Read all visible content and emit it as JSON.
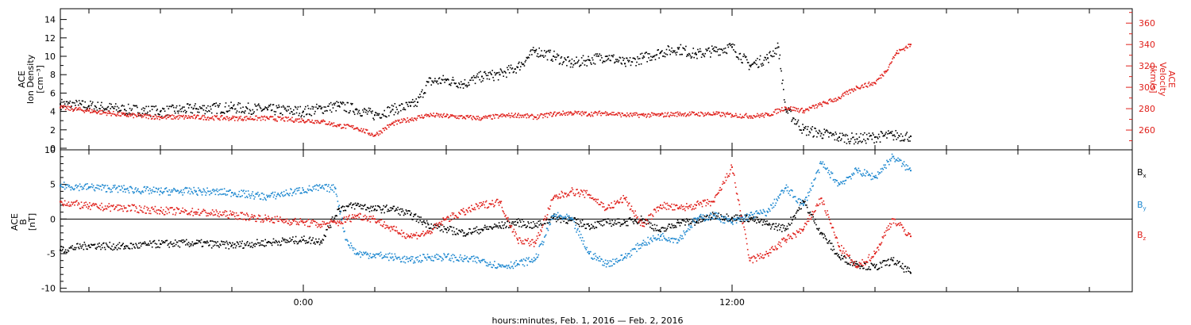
{
  "chart_data": [
    {
      "type": "scatter",
      "panel": "ion-density-velocity",
      "ylabel_lines": [
        "ACE",
        "Ion Density",
        "[cm⁻³]"
      ],
      "y2label_lines": [
        "ACE",
        "Velocity",
        "[km/s]"
      ],
      "ylim": [
        0,
        15
      ],
      "y2lim": [
        243,
        372
      ],
      "yticks": [
        0,
        2,
        4,
        6,
        8,
        10,
        12,
        14
      ],
      "y2ticks": [
        260,
        280,
        300,
        320,
        340,
        360
      ],
      "y2_color": "#e0201b",
      "xlim": [
        -6.8,
        23.2
      ],
      "series": [
        {
          "key": "density",
          "color": "#000000",
          "axis": "left",
          "x": [
            -6.8,
            -6,
            -5,
            -4,
            -3,
            -2,
            -1,
            0,
            0.5,
            1,
            1.5,
            2,
            2.5,
            3,
            3.2,
            3.5,
            4,
            4.5,
            5,
            5.5,
            6,
            6.5,
            7,
            7.5,
            8,
            8.5,
            9,
            9.5,
            10,
            10.5,
            11,
            11.5,
            12,
            12.5,
            13,
            13.3,
            13.5,
            14,
            14.5,
            15,
            15.5,
            16,
            16.5,
            17
          ],
          "y": [
            4.8,
            4.6,
            4.2,
            4.0,
            4.3,
            4.4,
            4.2,
            4.0,
            4.3,
            4.6,
            4.2,
            3.6,
            4.2,
            4.6,
            5.0,
            7.2,
            7.4,
            7.0,
            7.8,
            8.0,
            8.8,
            10.6,
            10.0,
            9.2,
            9.6,
            10.0,
            9.2,
            9.8,
            10.4,
            10.8,
            10.2,
            10.6,
            11.0,
            9.0,
            9.8,
            11.0,
            4.2,
            2.0,
            1.6,
            1.2,
            1.0,
            1.2,
            1.4,
            1.3
          ]
        },
        {
          "key": "velocity",
          "color": "#e0201b",
          "axis": "right",
          "x": [
            -6.8,
            -6,
            -5,
            -4,
            -3,
            -2,
            -1,
            0,
            0.5,
            1,
            1.5,
            2,
            2.5,
            3,
            3.5,
            4,
            4.5,
            5,
            5.5,
            6,
            6.5,
            7,
            7.5,
            8,
            8.5,
            9,
            9.5,
            10,
            10.5,
            11,
            11.5,
            12,
            12.5,
            13,
            13.5,
            14,
            14.5,
            15,
            15.5,
            16,
            16.3,
            16.6,
            17
          ],
          "y": [
            281,
            278,
            274,
            272,
            272,
            271,
            271,
            269,
            268,
            264,
            262,
            255,
            266,
            270,
            274,
            273,
            272,
            271,
            273,
            274,
            272,
            275,
            276,
            275,
            276,
            274,
            274,
            274,
            275,
            275,
            275,
            274,
            273,
            274,
            281,
            278,
            284,
            290,
            300,
            304,
            315,
            332,
            340
          ]
        }
      ]
    },
    {
      "type": "scatter",
      "panel": "magnetic-field",
      "ylabel_lines": [
        "ACE",
        "B",
        "[nT]"
      ],
      "ylim": [
        -10.5,
        10
      ],
      "yticks": [
        -10,
        -5,
        0,
        5,
        10
      ],
      "xlim": [
        -6.8,
        23.2
      ],
      "xticks": [
        {
          "x": 0,
          "label": "0:00"
        },
        {
          "x": 12,
          "label": "12:00"
        }
      ],
      "xlabel": "hours:minutes, Feb.  1, 2016 — Feb.  2, 2016",
      "series": [
        {
          "name": "Bx",
          "color": "#000000",
          "x": [
            -6.8,
            -6,
            -5,
            -4,
            -3,
            -2,
            -1,
            0,
            0.5,
            1,
            1.5,
            2,
            2.5,
            3,
            3.5,
            4,
            4.5,
            5,
            5.5,
            6,
            6.5,
            7,
            7.5,
            8,
            8.5,
            9,
            9.5,
            10,
            10.5,
            11,
            11.5,
            12,
            12.5,
            13,
            13.5,
            14,
            14.5,
            15,
            15.5,
            16,
            16.5,
            17
          ],
          "y": [
            -4.5,
            -3.8,
            -4.0,
            -3.6,
            -3.5,
            -3.8,
            -3.4,
            -3.0,
            -3.2,
            1.5,
            2.0,
            1.4,
            1.5,
            0.6,
            -0.8,
            -1.5,
            -2.0,
            -1.5,
            -1.0,
            -0.5,
            -1.0,
            0.2,
            -0.2,
            -1.0,
            -0.5,
            -0.5,
            0.0,
            -1.8,
            -0.5,
            -0.4,
            0.5,
            0.2,
            0.1,
            -0.8,
            -1.4,
            2.5,
            -2.0,
            -5.5,
            -6.5,
            -7.0,
            -6.0,
            -7.8
          ]
        },
        {
          "name": "By",
          "color": "#1e88d0",
          "x": [
            -6.8,
            -6,
            -5,
            -4,
            -3,
            -2,
            -1,
            0,
            0.5,
            0.9,
            1.2,
            1.5,
            2,
            2.5,
            3,
            3.5,
            4,
            4.5,
            5,
            5.5,
            6,
            6.5,
            7,
            7.5,
            8,
            8.5,
            9,
            9.5,
            10,
            10.5,
            11,
            11.5,
            12,
            12.5,
            13,
            13.5,
            14,
            14.5,
            15,
            15.5,
            16,
            16.5,
            17
          ],
          "y": [
            4.8,
            4.6,
            4.3,
            4.0,
            4.0,
            3.8,
            3.2,
            4.2,
            4.5,
            4.4,
            -3.0,
            -5.0,
            -5.2,
            -5.5,
            -6.0,
            -5.5,
            -5.5,
            -5.8,
            -6.0,
            -6.8,
            -6.5,
            -5.8,
            0.5,
            0.0,
            -5.0,
            -6.5,
            -5.5,
            -3.5,
            -2.5,
            -3.0,
            0.0,
            0.5,
            -0.5,
            0.5,
            1.0,
            4.5,
            2.0,
            8.0,
            5.0,
            7.0,
            6.0,
            9.0,
            7.0
          ]
        },
        {
          "name": "Bz",
          "color": "#e0201b",
          "x": [
            -6.8,
            -6,
            -5,
            -4,
            -3,
            -2,
            -1,
            0,
            0.5,
            1,
            1.5,
            2,
            2.5,
            3,
            3.5,
            4,
            4.5,
            5,
            5.5,
            6,
            6.5,
            7,
            7.5,
            8,
            8.5,
            9,
            9.5,
            10,
            10.5,
            11,
            11.5,
            12,
            12.5,
            13,
            13.5,
            14,
            14.5,
            15,
            15.5,
            16,
            16.5,
            17
          ],
          "y": [
            2.5,
            1.8,
            1.6,
            1.2,
            1.0,
            0.6,
            0.0,
            -0.5,
            -0.8,
            -0.5,
            0.5,
            0.0,
            -1.5,
            -2.5,
            -2.0,
            0.0,
            1.0,
            2.0,
            2.5,
            -3.0,
            -3.5,
            3.0,
            4.0,
            3.5,
            1.5,
            3.0,
            -1.0,
            2.0,
            1.5,
            2.0,
            2.5,
            7.5,
            -6.0,
            -5.0,
            -3.0,
            -1.5,
            3.0,
            -4.0,
            -7.0,
            -5.0,
            0.0,
            -2.5
          ]
        }
      ]
    }
  ]
}
